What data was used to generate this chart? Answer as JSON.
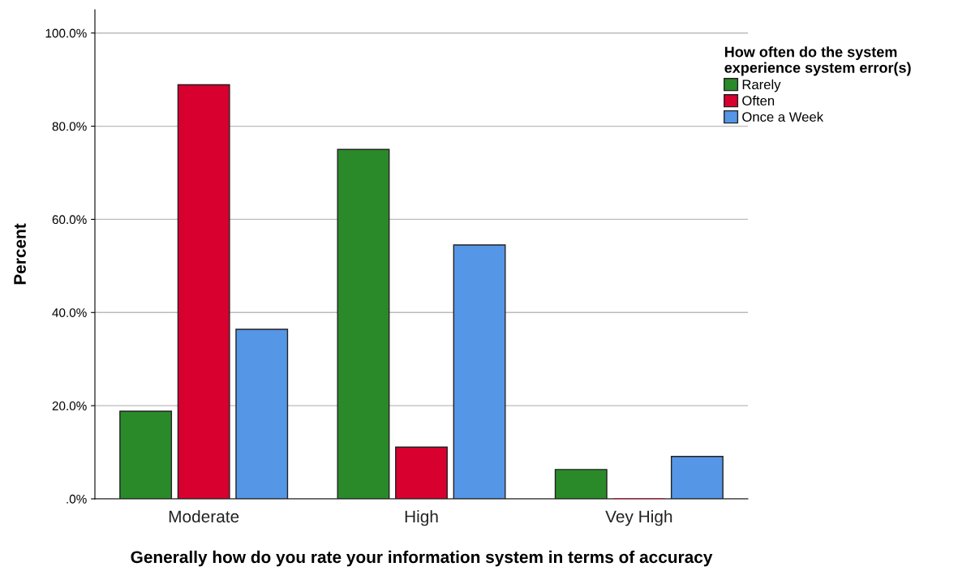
{
  "chart_data": {
    "type": "bar",
    "xlabel": "Generally how do you rate your information system in terms of accuracy",
    "ylabel": "Percent",
    "legend_title": "How often do the system\nexperience system error(s)",
    "categories": [
      "Moderate",
      "High",
      "Vey High"
    ],
    "series": [
      {
        "name": "Rarely",
        "color": "#2a8a2a",
        "values": [
          18.8,
          75.0,
          6.3
        ]
      },
      {
        "name": "Often",
        "color": "#d7002f",
        "values": [
          88.9,
          11.1,
          0
        ]
      },
      {
        "name": "Once a Week",
        "color": "#5596e6",
        "values": [
          36.4,
          54.5,
          9.1
        ]
      }
    ],
    "ylim": [
      0,
      105
    ],
    "yticks": [
      {
        "value": 0,
        "label": ".0%"
      },
      {
        "value": 20,
        "label": "20.0%"
      },
      {
        "value": 40,
        "label": "40.0%"
      },
      {
        "value": 60,
        "label": "60.0%"
      },
      {
        "value": 80,
        "label": "80.0%"
      },
      {
        "value": 100,
        "label": "100.0%"
      }
    ],
    "grid": "y",
    "legend": "top right"
  }
}
